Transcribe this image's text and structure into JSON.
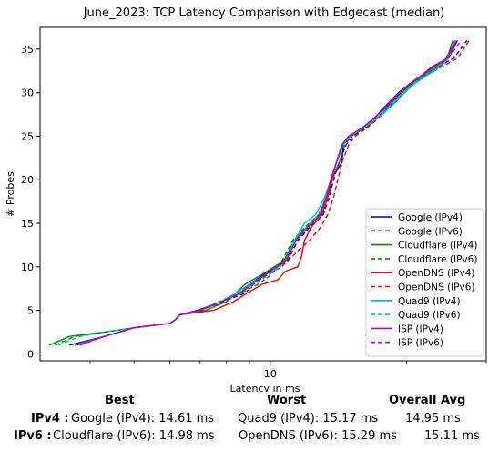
{
  "chart_data": {
    "type": "line",
    "title": "June_2023: TCP Latency Comparison with Edgecast (median)",
    "xlabel": "Latency in ms",
    "ylabel": "# Probes",
    "xscale": "log",
    "xlim": [
      3.1,
      30.0
    ],
    "ylim": [
      -0.8,
      37.5
    ],
    "yticks": [
      0,
      5,
      10,
      15,
      20,
      25,
      30,
      35
    ],
    "xticks": [
      {
        "value": 10,
        "label": "10"
      }
    ],
    "legend_position": "lower-right",
    "grid": false,
    "series": [
      {
        "name": "Google (IPv4)",
        "color": "#0000cc",
        "dash": false,
        "x": [
          3.6,
          4.3,
          5.0,
          6.0,
          6.2,
          6.3,
          6.9,
          7.8,
          8.6,
          9.0,
          9.6,
          10.2,
          10.6,
          10.8,
          11.3,
          12.0,
          12.9,
          13.3,
          13.6,
          14.4,
          14.5,
          15.0,
          16.1,
          17.0,
          17.6,
          18.4,
          19.2,
          20.3,
          21.6,
          22.8,
          24.8,
          25.9
        ],
        "y": [
          1,
          2,
          3,
          3.5,
          4,
          4.5,
          5,
          6,
          7,
          8,
          9,
          10,
          10.5,
          11,
          13,
          14.5,
          16,
          18,
          20,
          22,
          24,
          25,
          26,
          27,
          28,
          29,
          30,
          31,
          32,
          33,
          34,
          36
        ]
      },
      {
        "name": "Google (IPv6)",
        "color": "#0000cc",
        "dash": true,
        "x": [
          3.7,
          4.3,
          5.0,
          6.0,
          6.2,
          6.3,
          7.0,
          7.9,
          8.8,
          9.2,
          9.8,
          10.4,
          10.8,
          11.0,
          11.5,
          12.2,
          13.1,
          13.5,
          13.8,
          14.2,
          14.7,
          15.2,
          16.3,
          17.2,
          17.8,
          18.6,
          19.4,
          20.5,
          21.8,
          23.5,
          25.5,
          27.2
        ],
        "y": [
          1,
          2,
          3,
          3.5,
          4,
          4.5,
          5,
          6,
          7,
          8,
          9,
          10,
          10.5,
          11,
          13,
          14.5,
          16,
          18,
          20,
          22,
          24,
          25,
          26,
          27,
          28,
          29,
          30,
          31,
          32,
          33,
          34,
          36
        ]
      },
      {
        "name": "Cloudflare (IPv4)",
        "color": "#008800",
        "dash": false,
        "x": [
          3.25,
          3.6,
          4.3,
          5.0,
          6.0,
          6.2,
          6.3,
          7.2,
          8.0,
          8.8,
          9.5,
          10.2,
          10.6,
          10.8,
          11.3,
          12.0,
          12.8,
          13.3,
          13.6,
          14.0,
          14.5,
          15.0,
          16.2,
          17.2,
          18.0,
          18.8,
          19.6,
          20.6,
          22.0,
          23.6,
          24.6,
          25.3
        ],
        "y": [
          1,
          2,
          2.5,
          3,
          3.5,
          4,
          4.5,
          5,
          6,
          8,
          9,
          10,
          10.5,
          11,
          13,
          14.5,
          16,
          18,
          20,
          22,
          24,
          25,
          26,
          27,
          28,
          29,
          30,
          31,
          32,
          33,
          34,
          36
        ]
      },
      {
        "name": "Cloudflare (IPv6)",
        "color": "#008800",
        "dash": true,
        "x": [
          3.35,
          3.7,
          4.3,
          5.0,
          6.0,
          6.2,
          6.3,
          7.0,
          7.8,
          8.6,
          9.4,
          10.0,
          10.4,
          10.7,
          11.2,
          11.9,
          12.8,
          13.3,
          13.7,
          14.2,
          14.6,
          15.1,
          16.2,
          17.1,
          17.9,
          18.7,
          19.5,
          20.5,
          21.8,
          23.3,
          24.5,
          25.6
        ],
        "y": [
          1,
          2,
          2.5,
          3,
          3.5,
          4,
          4.5,
          5,
          6,
          7,
          8,
          9,
          10,
          11,
          13,
          14.5,
          16,
          18,
          20,
          22,
          24,
          25,
          26,
          27,
          28,
          29,
          30,
          31,
          32,
          33,
          34,
          36
        ]
      },
      {
        "name": "OpenDNS (IPv4)",
        "color": "#ee0000",
        "dash": false,
        "x": [
          3.7,
          4.3,
          5.0,
          6.0,
          6.2,
          6.3,
          7.5,
          8.3,
          8.9,
          9.6,
          10.4,
          10.8,
          11.5,
          11.7,
          11.9,
          12.3,
          13.0,
          13.4,
          13.7,
          14.0,
          14.4,
          15.0,
          16.0,
          16.9,
          17.7,
          18.5,
          19.3,
          20.3,
          21.6,
          23.0,
          24.6,
          25.6
        ],
        "y": [
          1,
          2,
          3,
          3.5,
          4,
          4.5,
          5,
          6,
          7,
          8,
          8.5,
          9.5,
          10,
          11,
          13,
          14.5,
          16,
          18,
          20,
          22,
          24,
          25,
          26,
          27,
          28,
          29,
          30,
          31,
          32,
          33,
          34,
          36
        ]
      },
      {
        "name": "OpenDNS (IPv6)",
        "color": "#ee0000",
        "dash": true,
        "x": [
          3.7,
          4.3,
          5.0,
          6.0,
          6.2,
          6.3,
          7.0,
          7.8,
          8.6,
          9.0,
          9.8,
          10.6,
          11.1,
          11.6,
          12.2,
          12.9,
          13.4,
          13.8,
          14.1,
          14.4,
          14.9,
          15.4,
          16.4,
          17.3,
          18.1,
          18.9,
          19.8,
          20.8,
          22.1,
          24.0,
          26.0,
          27.5
        ],
        "y": [
          1,
          2,
          3,
          3.5,
          4,
          4.5,
          5,
          6,
          7,
          8,
          9,
          10,
          11,
          12,
          13,
          14.5,
          16,
          18,
          20,
          22,
          24,
          25,
          26,
          27,
          28,
          29,
          30,
          31,
          32,
          33,
          34,
          36
        ]
      },
      {
        "name": "Quad9 (IPv4)",
        "color": "#00bbbb",
        "dash": false,
        "x": [
          3.7,
          4.3,
          5.0,
          6.0,
          6.2,
          6.3,
          7.0,
          7.8,
          8.4,
          9.0,
          9.7,
          10.4,
          10.7,
          10.9,
          11.3,
          11.9,
          12.6,
          13.2,
          13.6,
          14.0,
          14.4,
          14.9,
          16.1,
          17.2,
          18.1,
          19.0,
          19.8,
          20.8,
          22.2,
          23.8,
          24.8,
          25.6
        ],
        "y": [
          1,
          2,
          3,
          3.5,
          4,
          4.5,
          5,
          6,
          7,
          8,
          9,
          10,
          10.5,
          11,
          13,
          15,
          16,
          18,
          20,
          22,
          24,
          25,
          26,
          27,
          28,
          29,
          30,
          31,
          32,
          33,
          34,
          36
        ]
      },
      {
        "name": "Quad9 (IPv6)",
        "color": "#00bbbb",
        "dash": true,
        "x": [
          3.4,
          3.8,
          4.3,
          5.0,
          6.0,
          6.2,
          6.3,
          7.0,
          7.7,
          8.5,
          9.2,
          9.9,
          10.5,
          10.9,
          11.4,
          12.0,
          12.8,
          13.3,
          13.6,
          14.0,
          14.5,
          15.0,
          16.1,
          17.1,
          17.9,
          18.8,
          19.6,
          20.6,
          21.9,
          23.4,
          24.6,
          25.8
        ],
        "y": [
          1,
          2,
          2.5,
          3,
          3.5,
          4,
          4.5,
          5,
          6,
          7,
          8,
          9,
          10,
          11,
          13,
          14.5,
          16,
          18,
          20,
          22,
          24,
          25,
          26,
          27,
          28,
          29,
          30,
          31,
          32,
          33,
          34,
          36
        ]
      },
      {
        "name": "ISP (IPv4)",
        "color": "#bb00bb",
        "dash": false,
        "x": [
          3.75,
          4.3,
          5.0,
          6.0,
          6.2,
          6.3,
          7.0,
          7.8,
          8.6,
          9.1,
          9.7,
          10.3,
          10.7,
          10.9,
          11.4,
          12.1,
          12.9,
          13.3,
          13.6,
          14.0,
          14.4,
          14.9,
          16.0,
          16.9,
          17.7,
          18.5,
          19.3,
          20.3,
          21.6,
          23.1,
          24.6,
          25.8
        ],
        "y": [
          1,
          2,
          3,
          3.5,
          4,
          4.5,
          5,
          6,
          7,
          8,
          9,
          10,
          10.5,
          11,
          13,
          14.5,
          16,
          18,
          20,
          22,
          24,
          25,
          26,
          27,
          28,
          29,
          30,
          31,
          32,
          33,
          34,
          36
        ]
      },
      {
        "name": "ISP (IPv6)",
        "color": "#bb00bb",
        "dash": true,
        "x": [
          3.8,
          4.3,
          5.0,
          6.0,
          6.2,
          6.3,
          7.0,
          7.8,
          8.6,
          9.1,
          9.7,
          10.3,
          10.7,
          10.9,
          11.4,
          12.1,
          12.9,
          13.3,
          13.6,
          14.0,
          14.4,
          14.9,
          16.0,
          16.9,
          17.7,
          18.5,
          19.3,
          20.3,
          21.6,
          23.1,
          24.8,
          26.4
        ],
        "y": [
          1,
          2,
          3,
          3.5,
          4,
          4.5,
          5,
          6,
          7,
          8,
          9,
          10,
          10.5,
          11,
          13,
          14.5,
          16,
          18,
          20,
          22,
          24,
          25,
          26,
          27,
          28,
          29,
          30,
          31,
          32,
          33,
          34,
          36
        ]
      }
    ]
  },
  "summary": {
    "headers": {
      "best": "Best",
      "worst": "Worst",
      "avg": "Overall Avg"
    },
    "rows": [
      {
        "label": "IPv4 :",
        "best": "Google (IPv4): 14.61 ms",
        "worst": "Quad9 (IPv4): 15.17 ms",
        "avg": "14.95 ms"
      },
      {
        "label": "IPv6 :",
        "best": "Cloudflare (IPv6): 14.98 ms",
        "worst": "OpenDNS (IPv6): 15.29 ms",
        "avg": "15.11 ms"
      }
    ]
  }
}
